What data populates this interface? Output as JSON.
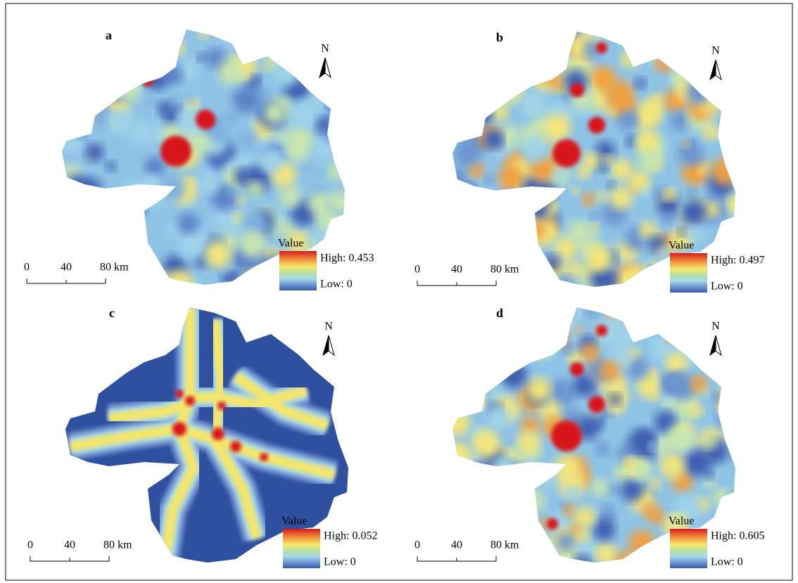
{
  "panels": [
    {
      "label": "a",
      "north": "N",
      "legend": {
        "title": "Value",
        "high": "High: 0.453",
        "low": "Low: 0"
      },
      "scale": [
        "0",
        "40",
        "80 km"
      ]
    },
    {
      "label": "b",
      "north": "N",
      "legend": {
        "title": "Value",
        "high": "High: 0.497",
        "low": "Low: 0"
      },
      "scale": [
        "0",
        "40",
        "80 km"
      ]
    },
    {
      "label": "c",
      "north": "N",
      "legend": {
        "title": "Value",
        "high": "High: 0.052",
        "low": "Low: 0"
      },
      "scale": [
        "0",
        "40",
        "80 km"
      ]
    },
    {
      "label": "d",
      "north": "N",
      "legend": {
        "title": "Value",
        "high": "High: 0.605",
        "low": "Low: 0"
      },
      "scale": [
        "0",
        "40",
        "80 km"
      ]
    }
  ]
}
